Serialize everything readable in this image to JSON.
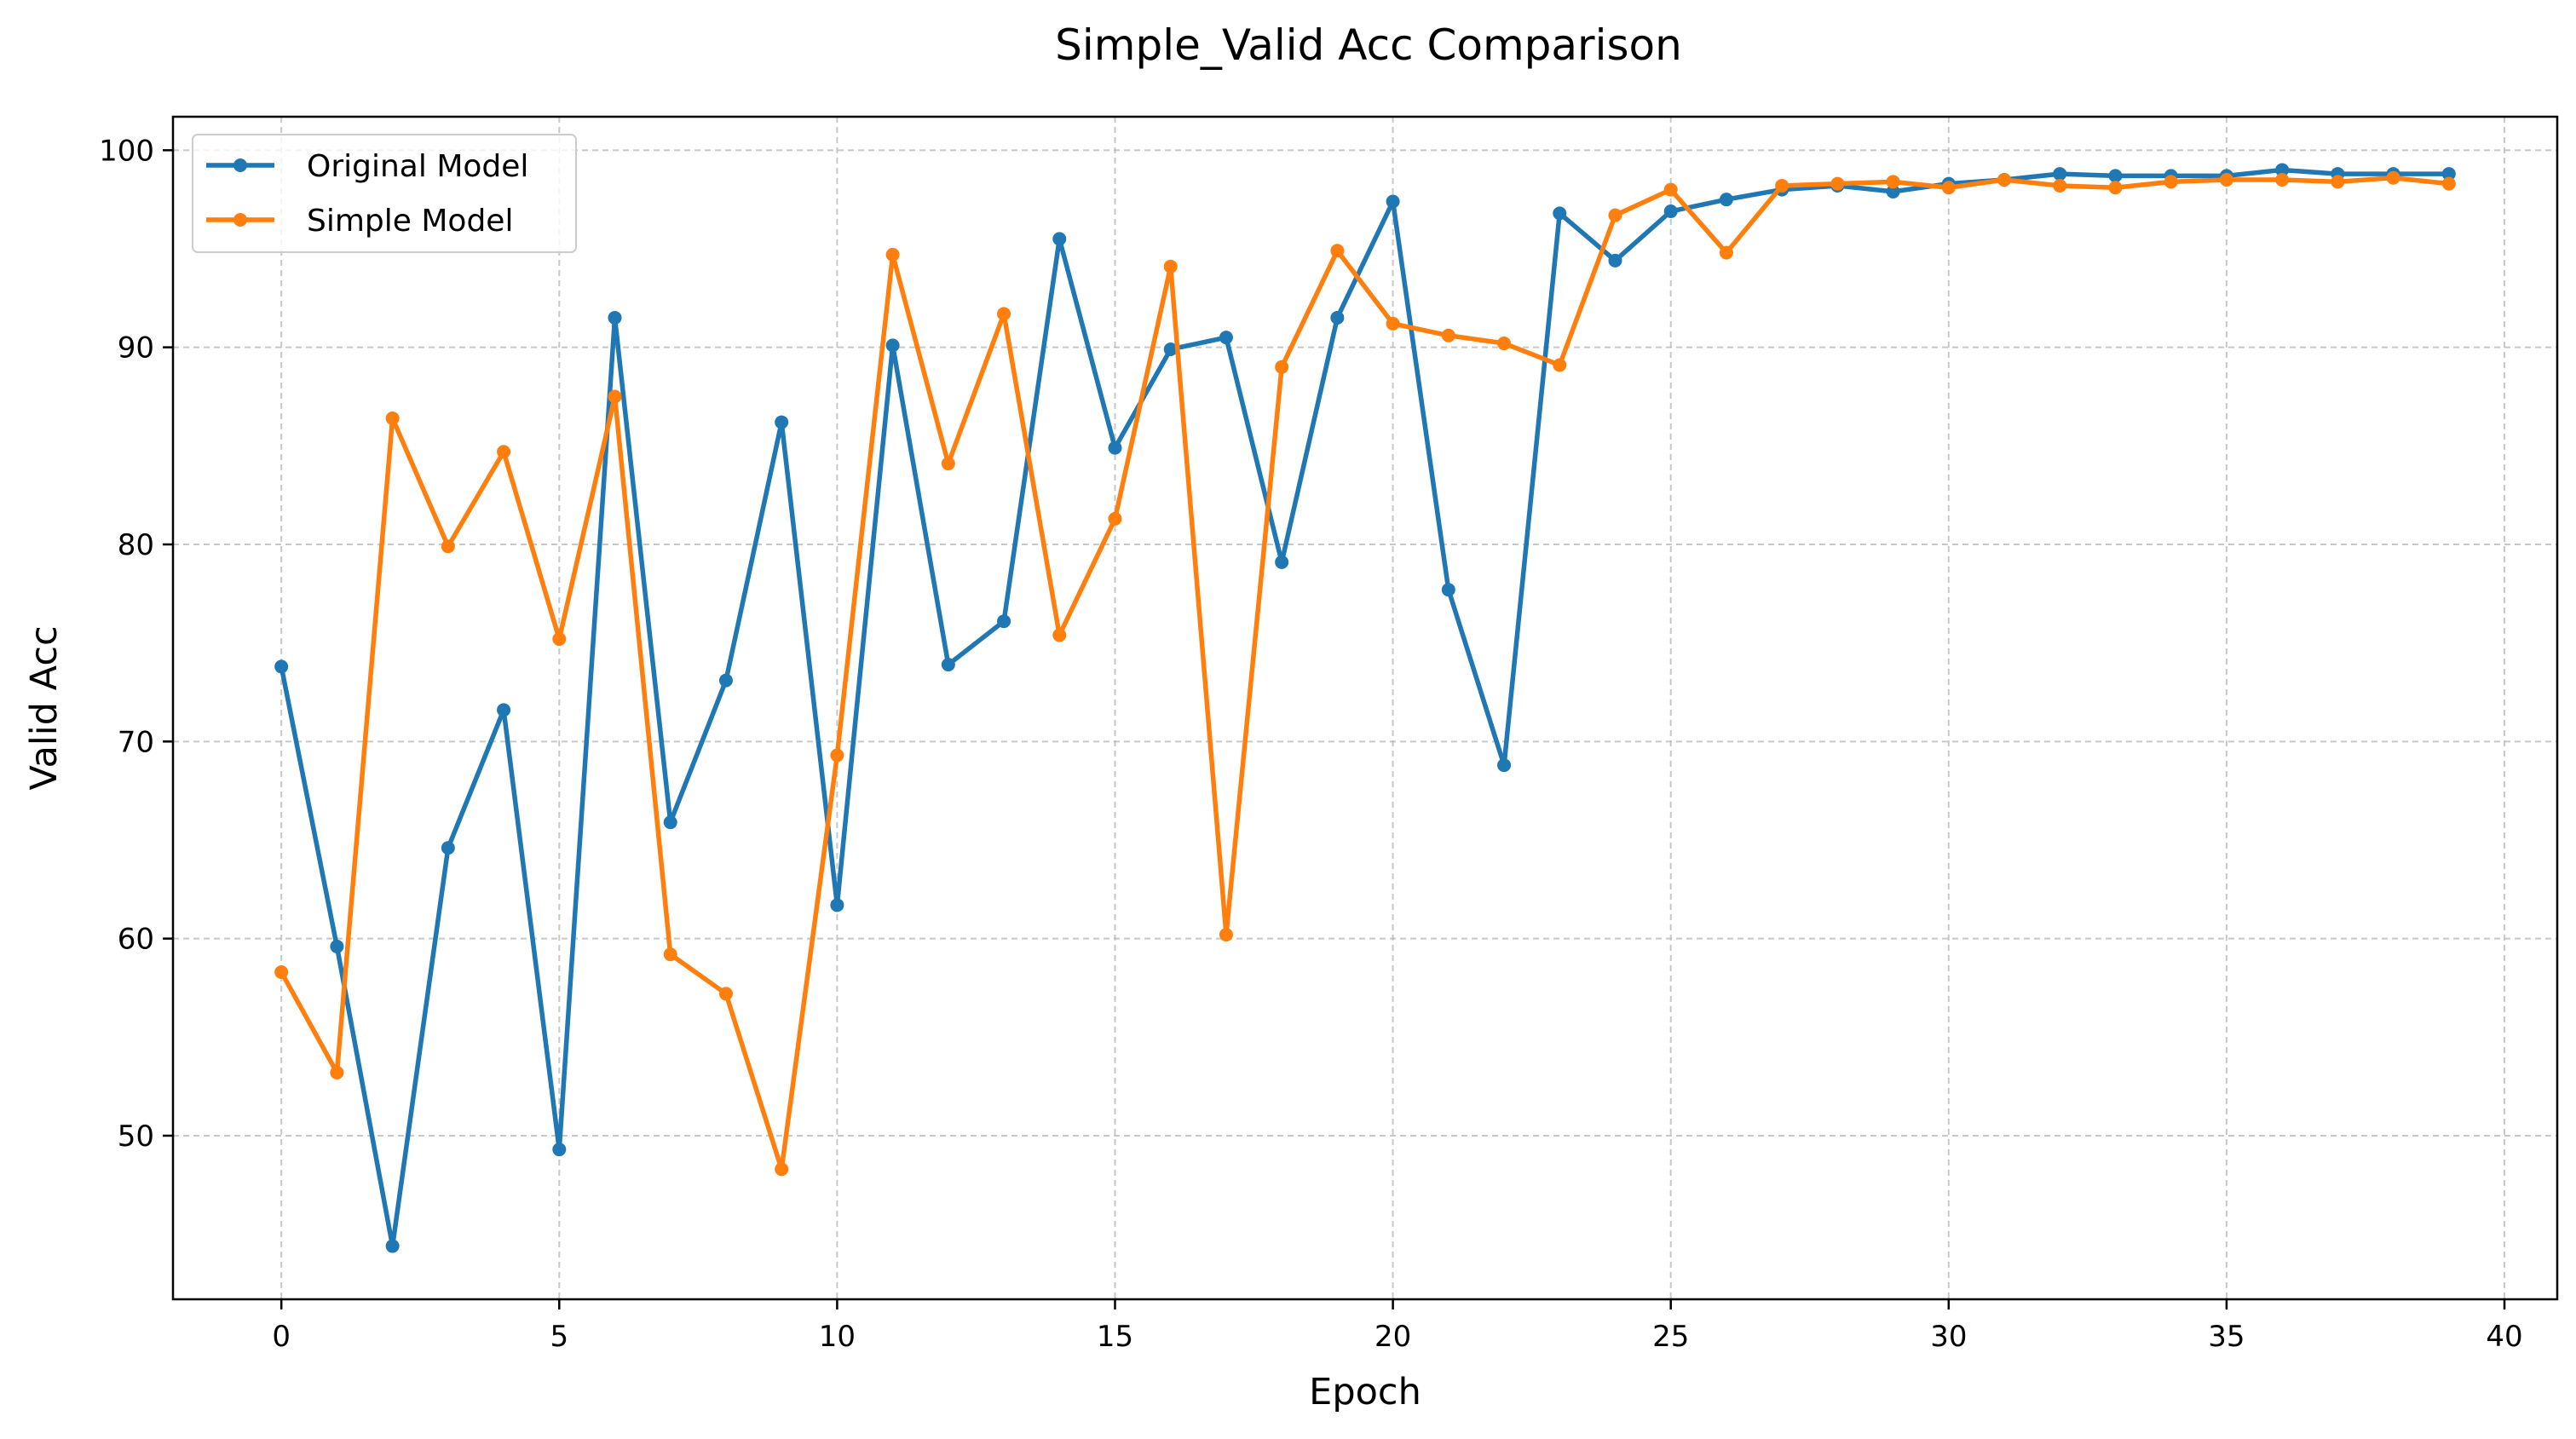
{
  "chart_data": {
    "type": "line",
    "title": "Simple_Valid Acc Comparison",
    "xlabel": "Epoch",
    "ylabel": "Valid Acc",
    "xlim": [
      -1.95,
      40.95
    ],
    "ylim": [
      41.7,
      101.7
    ],
    "xticks": [
      0,
      5,
      10,
      15,
      20,
      25,
      30,
      35,
      40
    ],
    "yticks": [
      50,
      60,
      70,
      80,
      90,
      100
    ],
    "grid": true,
    "legend_position": "upper-left",
    "x": [
      0,
      1,
      2,
      3,
      4,
      5,
      6,
      7,
      8,
      9,
      10,
      11,
      12,
      13,
      14,
      15,
      16,
      17,
      18,
      19,
      20,
      21,
      22,
      23,
      24,
      25,
      26,
      27,
      28,
      29,
      30,
      31,
      32,
      33,
      34,
      35,
      36,
      37,
      38,
      39
    ],
    "series": [
      {
        "name": "Original Model",
        "color": "#1f77b4",
        "values": [
          73.8,
          59.6,
          44.4,
          64.6,
          71.6,
          49.3,
          91.5,
          65.9,
          73.1,
          86.2,
          61.7,
          90.1,
          73.9,
          76.1,
          95.5,
          84.9,
          89.9,
          90.5,
          79.1,
          91.5,
          97.4,
          77.7,
          68.8,
          96.8,
          94.4,
          96.9,
          97.5,
          98.0,
          98.2,
          97.9,
          98.3,
          98.5,
          98.8,
          98.7,
          98.7,
          98.7,
          99.0,
          98.8,
          98.8,
          98.8
        ]
      },
      {
        "name": "Simple Model",
        "color": "#ff7f0e",
        "values": [
          58.3,
          53.2,
          86.4,
          79.9,
          84.7,
          75.2,
          87.5,
          59.2,
          57.2,
          48.3,
          69.3,
          94.7,
          84.1,
          91.7,
          75.4,
          81.3,
          94.1,
          60.2,
          89.0,
          94.9,
          91.2,
          90.6,
          90.2,
          89.1,
          96.7,
          98.0,
          94.8,
          98.2,
          98.3,
          98.4,
          98.1,
          98.5,
          98.2,
          98.1,
          98.4,
          98.5,
          98.5,
          98.4,
          98.6,
          98.3
        ]
      }
    ]
  }
}
